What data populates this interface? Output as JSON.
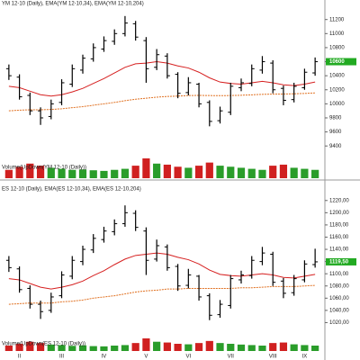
{
  "chart_data": [
    {
      "type": "ohlc",
      "title": "YM 12-10 (Daily), EMA(YM 12-10,34), EMA(YM 12-10,204)",
      "volume_label": "Volume(UpDown(YM 12-10 (Daily))",
      "last_label": "10600",
      "open": [
        10500,
        10380,
        10120,
        9900,
        9820,
        10020,
        10280,
        10480,
        10640,
        10780,
        10890,
        11000,
        11140,
        10900,
        10520,
        10680,
        10420,
        10160,
        10280,
        10020,
        9760,
        9880,
        10230,
        10290,
        10480,
        10580,
        10220,
        10060,
        10230,
        10440
      ],
      "high": [
        10560,
        10420,
        10160,
        9950,
        10060,
        10350,
        10560,
        10700,
        10860,
        10960,
        11060,
        11250,
        11180,
        10950,
        10780,
        10720,
        10450,
        10380,
        10300,
        10050,
        9960,
        10300,
        10360,
        10560,
        10680,
        10620,
        10260,
        10300,
        10500,
        10660
      ],
      "low": [
        10340,
        10060,
        9840,
        9700,
        9780,
        9980,
        10240,
        10430,
        10600,
        10740,
        10840,
        10960,
        10900,
        10300,
        10480,
        10360,
        10080,
        10120,
        9950,
        9680,
        9720,
        9840,
        10180,
        10250,
        10430,
        10150,
        9980,
        10020,
        10200,
        10400
      ],
      "close": [
        10400,
        10100,
        9900,
        9800,
        10000,
        10300,
        10500,
        10650,
        10800,
        10900,
        11000,
        11150,
        10950,
        10500,
        10700,
        10400,
        10150,
        10300,
        10000,
        9750,
        9900,
        10250,
        10300,
        10500,
        10600,
        10200,
        10050,
        10250,
        10450,
        10600
      ],
      "lines": [
        {
          "color": "#d62020",
          "values": [
            10250,
            10230,
            10180,
            10130,
            10110,
            10130,
            10170,
            10220,
            10290,
            10360,
            10440,
            10520,
            10570,
            10580,
            10600,
            10580,
            10540,
            10510,
            10450,
            10370,
            10310,
            10290,
            10280,
            10300,
            10320,
            10300,
            10270,
            10260,
            10280,
            10310
          ]
        },
        {
          "color": "#e07020",
          "dashed": true,
          "values": [
            9900,
            9910,
            9915,
            9915,
            9920,
            9930,
            9945,
            9960,
            9980,
            10000,
            10020,
            10045,
            10065,
            10080,
            10095,
            10105,
            10110,
            10118,
            10120,
            10118,
            10116,
            10118,
            10122,
            10128,
            10135,
            10138,
            10140,
            10143,
            10148,
            10155
          ]
        }
      ],
      "volume": [
        40,
        55,
        70,
        60,
        50,
        45,
        40,
        42,
        38,
        35,
        40,
        45,
        60,
        95,
        70,
        65,
        55,
        50,
        60,
        75,
        60,
        55,
        50,
        45,
        40,
        60,
        65,
        50,
        45,
        40
      ],
      "ylim": [
        9300,
        11350
      ],
      "yticks": [
        9400,
        9600,
        9800,
        10000,
        10200,
        10400,
        10600,
        10800,
        11000,
        11200
      ]
    },
    {
      "type": "ohlc",
      "title": "ES 12-10 (Daily), EMA(ES 12-10,34), EMA(ES 12-10,204)",
      "volume_label": "Volume(UpDown(ES 12-10 (Daily))",
      "last_label": "1119,50",
      "open": [
        1122,
        1108,
        1076,
        1050,
        1040,
        1064,
        1096,
        1120,
        1139,
        1156,
        1169,
        1182,
        1199,
        1170,
        1124,
        1144,
        1112,
        1081,
        1096,
        1064,
        1033,
        1048,
        1090,
        1097,
        1120,
        1132,
        1088,
        1069,
        1090,
        1115
      ],
      "high": [
        1129,
        1112,
        1081,
        1056,
        1069,
        1104,
        1129,
        1146,
        1165,
        1177,
        1189,
        1212,
        1204,
        1176,
        1156,
        1148,
        1116,
        1108,
        1098,
        1068,
        1057,
        1098,
        1105,
        1129,
        1144,
        1136,
        1093,
        1098,
        1122,
        1141
      ],
      "low": [
        1103,
        1069,
        1043,
        1026,
        1036,
        1060,
        1091,
        1114,
        1134,
        1151,
        1163,
        1177,
        1170,
        1098,
        1120,
        1105,
        1072,
        1076,
        1056,
        1024,
        1028,
        1043,
        1084,
        1092,
        1114,
        1080,
        1060,
        1064,
        1086,
        1110
      ],
      "close": [
        1110,
        1074,
        1050,
        1038,
        1062,
        1098,
        1122,
        1140,
        1158,
        1170,
        1182,
        1200,
        1176,
        1122,
        1146,
        1110,
        1080,
        1098,
        1062,
        1032,
        1050,
        1092,
        1098,
        1122,
        1134,
        1086,
        1068,
        1092,
        1116,
        1119.5
      ],
      "lines": [
        {
          "color": "#d62020",
          "values": [
            1092,
            1090,
            1084,
            1078,
            1075,
            1078,
            1082,
            1088,
            1097,
            1105,
            1115,
            1124,
            1130,
            1132,
            1134,
            1132,
            1127,
            1123,
            1116,
            1106,
            1099,
            1097,
            1096,
            1098,
            1100,
            1098,
            1094,
            1093,
            1096,
            1099
          ]
        },
        {
          "color": "#e07020",
          "dashed": true,
          "values": [
            1050,
            1051,
            1052,
            1052,
            1052,
            1054,
            1055,
            1057,
            1060,
            1062,
            1064,
            1067,
            1070,
            1072,
            1073,
            1075,
            1075,
            1076,
            1076,
            1076,
            1076,
            1076,
            1077,
            1077,
            1078,
            1079,
            1079,
            1079,
            1080,
            1081
          ]
        }
      ],
      "volume": [
        42,
        56,
        72,
        62,
        50,
        46,
        40,
        44,
        38,
        36,
        42,
        46,
        62,
        98,
        72,
        66,
        56,
        52,
        62,
        78,
        62,
        56,
        50,
        46,
        42,
        62,
        66,
        52,
        46,
        42
      ],
      "ylim": [
        1000,
        1230
      ],
      "yticks": [
        {
          "value": 1020,
          "label": "1020,00"
        },
        {
          "value": 1040,
          "label": "1040,00"
        },
        {
          "value": 1060,
          "label": "1060,00"
        },
        {
          "value": 1080,
          "label": "1080,00"
        },
        {
          "value": 1100,
          "label": "1100,00"
        },
        {
          "value": 1120,
          "label": "1120,00"
        },
        {
          "value": 1140,
          "label": "1140,00"
        },
        {
          "value": 1160,
          "label": "1160,00"
        },
        {
          "value": 1180,
          "label": "1180,00"
        },
        {
          "value": 1200,
          "label": "1200,00"
        },
        {
          "value": 1220,
          "label": "1220,00"
        }
      ],
      "months": [
        {
          "label": "II",
          "index": 1
        },
        {
          "label": "III",
          "index": 5
        },
        {
          "label": "IV",
          "index": 9
        },
        {
          "label": "V",
          "index": 13
        },
        {
          "label": "VI",
          "index": 17
        },
        {
          "label": "VII",
          "index": 21
        },
        {
          "label": "VIII",
          "index": 25
        },
        {
          "label": "IX",
          "index": 28
        }
      ]
    }
  ]
}
